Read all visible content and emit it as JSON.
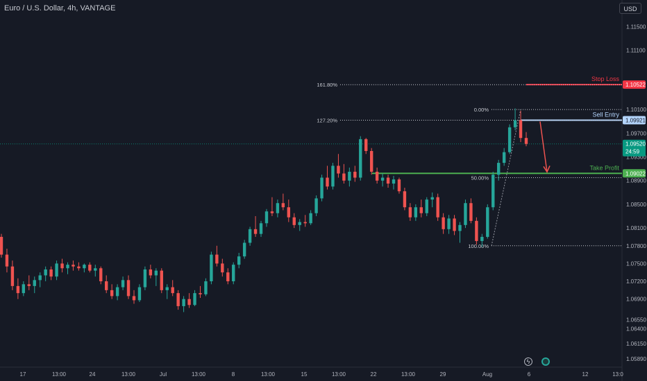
{
  "header": {
    "symbol": "Euro / U.S. Dollar",
    "interval": "4h",
    "broker": "VANTAGE"
  },
  "toolbar": {
    "currency_label": "USD"
  },
  "icons": {
    "lightning": "lightning-icon",
    "event": "event-dot-icon"
  },
  "colors": {
    "background": "#161a25",
    "up": "#26a69a",
    "down": "#ef5350",
    "stop_loss": "#f23645",
    "sell_entry": "#b3d4fc",
    "take_profit": "#4caf50",
    "current_price": "#089981",
    "fib": "#c7cad1"
  },
  "chart_data": {
    "type": "candlestick",
    "ylim": [
      1.0575,
      1.1195
    ],
    "y_ticks": [
      "1.11500",
      "1.11100",
      "1.10100",
      "1.09700",
      "1.09300",
      "1.08900",
      "1.08500",
      "1.08100",
      "1.07800",
      "1.07500",
      "1.07200",
      "1.06900",
      "1.06550",
      "1.06400",
      "1.06150",
      "1.05890"
    ],
    "x_ticks": [
      "17",
      "13:00",
      "24",
      "13:00",
      "Jul",
      "13:00",
      "8",
      "13:00",
      "15",
      "13:00",
      "22",
      "13:00",
      "29",
      "Aug",
      "6",
      "12",
      "13:0"
    ],
    "candles": [
      [
        1.0795,
        1.08,
        1.076,
        1.0765
      ],
      [
        1.0765,
        1.0775,
        1.0735,
        1.0745
      ],
      [
        1.0745,
        1.0755,
        1.0705,
        1.0712
      ],
      [
        1.0712,
        1.0725,
        1.069,
        1.07
      ],
      [
        1.07,
        1.072,
        1.0695,
        1.0715
      ],
      [
        1.0715,
        1.073,
        1.0705,
        1.0712
      ],
      [
        1.0712,
        1.0728,
        1.07,
        1.0722
      ],
      [
        1.0722,
        1.0735,
        1.071,
        1.073
      ],
      [
        1.073,
        1.0745,
        1.072,
        1.074
      ],
      [
        1.074,
        1.0745,
        1.0722,
        1.0728
      ],
      [
        1.0728,
        1.0755,
        1.0722,
        1.075
      ],
      [
        1.075,
        1.0758,
        1.0735,
        1.0742
      ],
      [
        1.0742,
        1.0752,
        1.0732,
        1.0748
      ],
      [
        1.0748,
        1.0755,
        1.0738,
        1.0745
      ],
      [
        1.0745,
        1.0752,
        1.0738,
        1.0742
      ],
      [
        1.0742,
        1.075,
        1.0735,
        1.0748
      ],
      [
        1.0748,
        1.0752,
        1.0735,
        1.0738
      ],
      [
        1.0738,
        1.0748,
        1.0728,
        1.0742
      ],
      [
        1.0742,
        1.0745,
        1.0715,
        1.072
      ],
      [
        1.072,
        1.073,
        1.07,
        1.0705
      ],
      [
        1.0705,
        1.0715,
        1.069,
        1.0695
      ],
      [
        1.0695,
        1.0715,
        1.0688,
        1.071
      ],
      [
        1.071,
        1.0728,
        1.0705,
        1.0722
      ],
      [
        1.0722,
        1.073,
        1.069,
        1.0695
      ],
      [
        1.0695,
        1.0705,
        1.0682,
        1.0688
      ],
      [
        1.0688,
        1.0715,
        1.0685,
        1.071
      ],
      [
        1.071,
        1.0745,
        1.0705,
        1.074
      ],
      [
        1.074,
        1.0748,
        1.0725,
        1.073
      ],
      [
        1.073,
        1.0742,
        1.0712,
        1.0738
      ],
      [
        1.0738,
        1.0742,
        1.07,
        1.0705
      ],
      [
        1.0705,
        1.0715,
        1.069,
        1.071
      ],
      [
        1.071,
        1.0722,
        1.0695,
        1.07
      ],
      [
        1.07,
        1.0705,
        1.0672,
        1.0678
      ],
      [
        1.0678,
        1.0695,
        1.0668,
        1.069
      ],
      [
        1.069,
        1.07,
        1.0675,
        1.068
      ],
      [
        1.068,
        1.0705,
        1.0678,
        1.07
      ],
      [
        1.07,
        1.0712,
        1.0692,
        1.0698
      ],
      [
        1.0698,
        1.0725,
        1.0695,
        1.072
      ],
      [
        1.072,
        1.077,
        1.0715,
        1.0765
      ],
      [
        1.0765,
        1.078,
        1.0745,
        1.075
      ],
      [
        1.075,
        1.0758,
        1.0728,
        1.0735
      ],
      [
        1.0735,
        1.0742,
        1.0715,
        1.072
      ],
      [
        1.072,
        1.0752,
        1.0715,
        1.0748
      ],
      [
        1.0748,
        1.0768,
        1.0742,
        1.0762
      ],
      [
        1.0762,
        1.079,
        1.0758,
        1.0785
      ],
      [
        1.0785,
        1.0812,
        1.078,
        1.0808
      ],
      [
        1.0808,
        1.083,
        1.0795,
        1.08
      ],
      [
        1.08,
        1.0822,
        1.0795,
        1.0818
      ],
      [
        1.0818,
        1.0842,
        1.0812,
        1.0838
      ],
      [
        1.0838,
        1.0862,
        1.083,
        1.0835
      ],
      [
        1.0835,
        1.0858,
        1.0828,
        1.0852
      ],
      [
        1.0852,
        1.0868,
        1.084,
        1.0845
      ],
      [
        1.0845,
        1.0858,
        1.082,
        1.0828
      ],
      [
        1.0828,
        1.0835,
        1.081,
        1.0815
      ],
      [
        1.0815,
        1.0825,
        1.0805,
        1.082
      ],
      [
        1.082,
        1.0832,
        1.0812,
        1.0818
      ],
      [
        1.0818,
        1.084,
        1.0815,
        1.0835
      ],
      [
        1.0835,
        1.0865,
        1.083,
        1.086
      ],
      [
        1.086,
        1.09,
        1.0855,
        1.0895
      ],
      [
        1.0895,
        1.0915,
        1.0875,
        1.088
      ],
      [
        1.088,
        1.092,
        1.0875,
        1.0915
      ],
      [
        1.0915,
        1.0935,
        1.0895,
        1.0902
      ],
      [
        1.0902,
        1.0918,
        1.0885,
        1.089
      ],
      [
        1.089,
        1.0912,
        1.088,
        1.0905
      ],
      [
        1.0905,
        1.0915,
        1.0888,
        1.0895
      ],
      [
        1.0895,
        1.0965,
        1.089,
        1.096
      ],
      [
        1.096,
        1.0962,
        1.0935,
        1.094
      ],
      [
        1.094,
        1.0945,
        1.09,
        1.0905
      ],
      [
        1.0905,
        1.0912,
        1.0885,
        1.089
      ],
      [
        1.089,
        1.0902,
        1.088,
        1.0895
      ],
      [
        1.0895,
        1.09,
        1.0878,
        1.0885
      ],
      [
        1.0885,
        1.0898,
        1.0875,
        1.0892
      ],
      [
        1.0892,
        1.0895,
        1.0868,
        1.0872
      ],
      [
        1.0872,
        1.0878,
        1.084,
        1.0845
      ],
      [
        1.0845,
        1.0852,
        1.0822,
        1.0828
      ],
      [
        1.0828,
        1.085,
        1.0822,
        1.0845
      ],
      [
        1.0845,
        1.0858,
        1.0828,
        1.0835
      ],
      [
        1.0835,
        1.0862,
        1.083,
        1.0858
      ],
      [
        1.0858,
        1.087,
        1.0845,
        1.0862
      ],
      [
        1.0862,
        1.0868,
        1.0822,
        1.0828
      ],
      [
        1.0828,
        1.0835,
        1.08,
        1.0808
      ],
      [
        1.0808,
        1.0832,
        1.08,
        1.0826
      ],
      [
        1.0826,
        1.0832,
        1.0798,
        1.0805
      ],
      [
        1.0805,
        1.082,
        1.0785,
        1.0815
      ],
      [
        1.0815,
        1.0858,
        1.081,
        1.0852
      ],
      [
        1.0852,
        1.086,
        1.0818,
        1.0822
      ],
      [
        1.0822,
        1.0828,
        1.0782,
        1.0788
      ],
      [
        1.0788,
        1.08,
        1.0778,
        1.0795
      ],
      [
        1.0795,
        1.085,
        1.0792,
        1.0845
      ],
      [
        1.0845,
        1.0905,
        1.084,
        1.09
      ],
      [
        1.09,
        1.0925,
        1.089,
        1.092
      ],
      [
        1.092,
        1.0945,
        1.0915,
        1.0938
      ],
      [
        1.0938,
        1.0985,
        1.0935,
        1.098
      ],
      [
        1.098,
        1.1012,
        1.0975,
        1.0992
      ],
      [
        1.0992,
        1.1008,
        1.0955,
        1.0962
      ],
      [
        1.0962,
        1.0972,
        1.0948,
        1.0952
      ]
    ],
    "levels": [
      {
        "name": "Stop Loss",
        "value": 1.10522,
        "price_label": "1.10522",
        "style": "solid",
        "color_key": "stop_loss"
      },
      {
        "name": "Sell Entry",
        "value": 1.09921,
        "price_label": "1.09921",
        "style": "solid",
        "color_key": "sell_entry"
      },
      {
        "name": "Take Profit",
        "value": 1.09022,
        "price_label": "1.09022",
        "style": "solid",
        "color_key": "take_profit"
      }
    ],
    "current_price": {
      "value": 1.0952,
      "label": "1.09520",
      "countdown": "24:59"
    },
    "fib_levels": [
      {
        "label": "161.80%",
        "value": 1.1052
      },
      {
        "label": "127.20%",
        "value": 1.0992
      },
      {
        "label": "0.00%",
        "value": 1.101
      },
      {
        "label": "50.00%",
        "value": 1.0895
      },
      {
        "label": "100.00%",
        "value": 1.078
      }
    ]
  }
}
